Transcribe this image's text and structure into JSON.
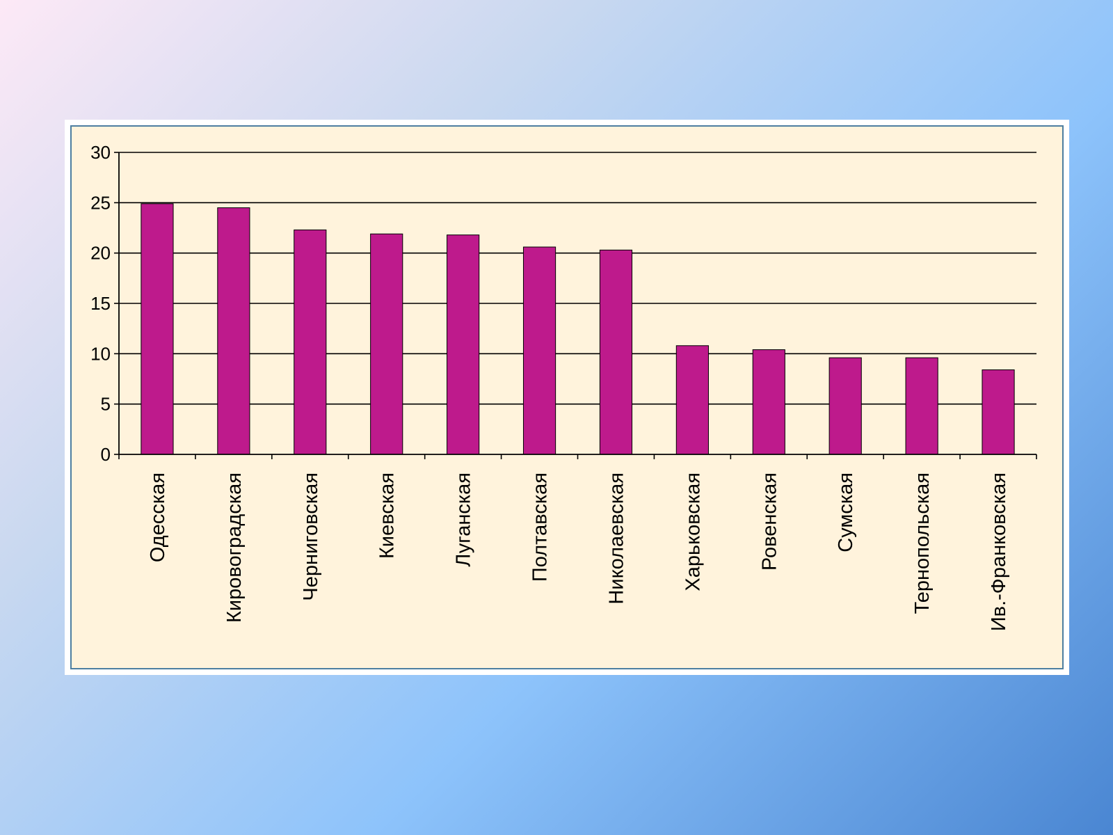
{
  "chart_data": {
    "type": "bar",
    "categories": [
      "Одесская",
      "Кировоградская",
      "Черниговская",
      "Киевская",
      "Луганская",
      "Полтавская",
      "Николаевская",
      "Харьковская",
      "Ровенская",
      "Сумская",
      "Тернопольская",
      "Ив.-Франковская"
    ],
    "values": [
      24.9,
      24.5,
      22.3,
      21.9,
      21.8,
      20.6,
      20.3,
      10.8,
      10.4,
      9.6,
      9.6,
      8.4
    ],
    "yticks": [
      "0",
      "5",
      "10",
      "15",
      "20",
      "25",
      "30"
    ],
    "ylim": [
      0,
      30
    ],
    "grid": true,
    "legend": "none",
    "colors": {
      "bar": "#be1a8c",
      "bar_edge": "#000000",
      "grid": "#000000",
      "panel": "#fff3dc",
      "frame": "#4d7ea0"
    }
  }
}
